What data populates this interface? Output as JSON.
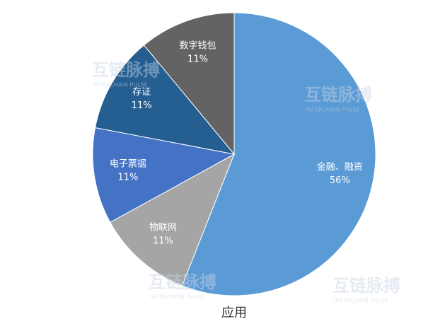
{
  "chart_data": {
    "type": "pie",
    "title": "应用",
    "categories": [
      "金融、融资",
      "物联网",
      "电子票据",
      "存证",
      "数字钱包"
    ],
    "values": [
      56,
      11,
      11,
      11,
      11
    ],
    "value_labels": [
      "56%",
      "11%",
      "11%",
      "11%",
      "11%"
    ],
    "colors": [
      "#5b9bd5",
      "#a5a5a5",
      "#4472c4",
      "#255e91",
      "#636363"
    ]
  },
  "watermark": {
    "text": "互链脉搏",
    "subtext": "INTERCHAIN PULSE"
  }
}
